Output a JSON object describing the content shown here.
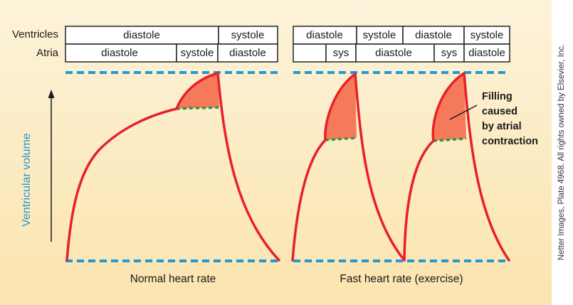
{
  "colors": {
    "background_top": "#fdf3da",
    "background_bottom": "#fbe4ae",
    "curve": "#e8202a",
    "atrial_fill": "#f57a5a",
    "baseline_dash": "#1f9ad6",
    "atrial_boundary": "#2a9a3c",
    "axis_label": "#1f9ad6"
  },
  "row_labels": {
    "ventricles": "Ventricles",
    "atria": "Atria"
  },
  "normal_panel": {
    "ventricles": [
      "diastole",
      "systole"
    ],
    "atria": [
      "diastole",
      "systole",
      "diastole"
    ],
    "caption": "Normal heart rate"
  },
  "fast_panel": {
    "ventricles": [
      "diastole",
      "systole",
      "diastole",
      "systole"
    ],
    "atria": [
      "sys",
      "diastole",
      "sys",
      "diastole"
    ],
    "caption": "Fast heart rate (exercise)"
  },
  "y_axis_label": "Ventricular volume",
  "annotation": [
    "Filling",
    "caused",
    "by atrial",
    "contraction"
  ],
  "credit": "Netter Images, Plate 4968. All rights owned by Elsevier, Inc.",
  "icons": {
    "y_axis_arrow": "arrow-up-icon"
  }
}
